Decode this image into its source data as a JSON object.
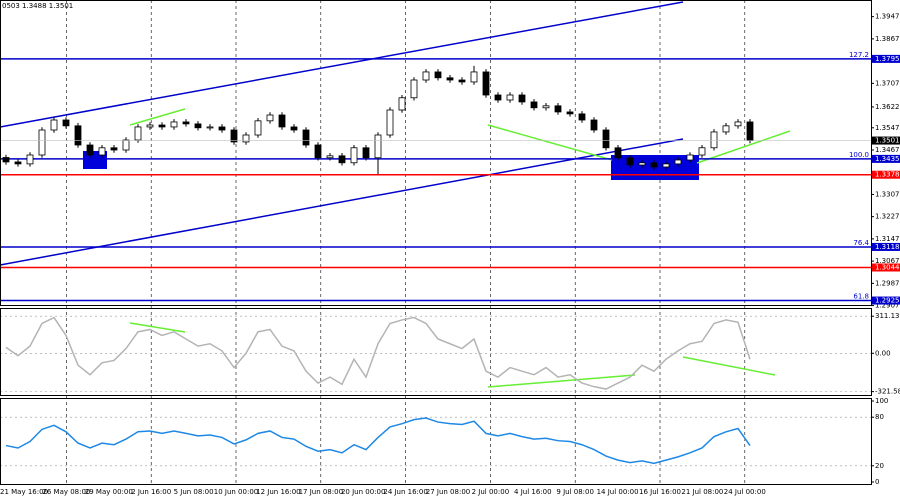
{
  "chart_data": [
    {
      "type": "candlestick",
      "title": "0503 1.3488 1.3501",
      "color": "#000000",
      "x_labels": [
        "21 May 16:00",
        "26 May 08:00",
        "29 May 00:00",
        "2 Jun 16:00",
        "5 Jun 08:00",
        "10 Jun 00:00",
        "12 Jun 16:00",
        "17 Jun 08:00",
        "20 Jun 00:00",
        "24 Jun 16:00",
        "27 Jun 08:00",
        "2 Jul 00:00",
        "4 Jul 16:00",
        "9 Jul 08:00",
        "14 Jul 00:00",
        "16 Jul 16:00",
        "21 Jul 08:00",
        "24 Jul 00:00"
      ],
      "open": [
        1.344,
        1.3424,
        1.3417,
        1.3449,
        1.3539,
        1.3575,
        1.3554,
        1.3485,
        1.3449,
        1.3475,
        1.3467,
        1.3503,
        1.355,
        1.3557,
        1.355,
        1.3568,
        1.3561,
        1.3547,
        1.355,
        1.3539,
        1.3496,
        1.3521,
        1.3572,
        1.3593,
        1.355,
        1.3539,
        1.3485,
        1.3439,
        1.3446,
        1.3421,
        1.3475,
        1.3439,
        1.3521,
        1.3611,
        1.3655,
        1.3719,
        1.3748,
        1.3727,
        1.3719,
        1.3712,
        1.3748,
        1.3665,
        1.3647,
        1.3665,
        1.364,
        1.3619,
        1.3626,
        1.3604,
        1.3597,
        1.3575,
        1.3539,
        1.3475,
        1.3439,
        1.3413,
        1.3421,
        1.3406,
        1.3417,
        1.3431,
        1.3449,
        1.3475,
        1.3532,
        1.3554,
        1.3568
      ],
      "high": [
        1.345,
        1.3434,
        1.3459,
        1.3549,
        1.3585,
        1.3585,
        1.3564,
        1.3495,
        1.3485,
        1.3485,
        1.3513,
        1.356,
        1.3567,
        1.3567,
        1.3578,
        1.3578,
        1.3571,
        1.356,
        1.356,
        1.3549,
        1.3531,
        1.3582,
        1.3603,
        1.3603,
        1.356,
        1.3549,
        1.3495,
        1.3456,
        1.3456,
        1.3485,
        1.3485,
        1.3531,
        1.3621,
        1.3665,
        1.3729,
        1.3758,
        1.3758,
        1.3737,
        1.3729,
        1.377,
        1.3758,
        1.3675,
        1.3675,
        1.3675,
        1.365,
        1.3636,
        1.3636,
        1.3614,
        1.3607,
        1.3585,
        1.3549,
        1.3485,
        1.3449,
        1.3431,
        1.3431,
        1.3427,
        1.3441,
        1.3459,
        1.3485,
        1.3542,
        1.3564,
        1.3578,
        1.3578
      ],
      "low": [
        1.3414,
        1.3407,
        1.3407,
        1.3439,
        1.3529,
        1.3544,
        1.3475,
        1.3439,
        1.3439,
        1.3457,
        1.3457,
        1.3493,
        1.354,
        1.354,
        1.354,
        1.3551,
        1.3537,
        1.3537,
        1.3529,
        1.3486,
        1.3486,
        1.3511,
        1.3562,
        1.354,
        1.3529,
        1.3475,
        1.3429,
        1.3429,
        1.3411,
        1.3411,
        1.3429,
        1.338,
        1.3511,
        1.3601,
        1.3645,
        1.3709,
        1.3717,
        1.3709,
        1.3702,
        1.3702,
        1.3655,
        1.3637,
        1.3637,
        1.363,
        1.3609,
        1.3609,
        1.3594,
        1.3587,
        1.3565,
        1.3529,
        1.3465,
        1.3429,
        1.3403,
        1.3403,
        1.3396,
        1.3396,
        1.3407,
        1.3421,
        1.3439,
        1.3465,
        1.3522,
        1.3544,
        1.3491
      ],
      "close": [
        1.3424,
        1.3417,
        1.3449,
        1.3539,
        1.3575,
        1.3554,
        1.3485,
        1.3449,
        1.3475,
        1.3467,
        1.3503,
        1.355,
        1.3557,
        1.355,
        1.3568,
        1.3561,
        1.3547,
        1.355,
        1.3539,
        1.3496,
        1.3521,
        1.3572,
        1.3593,
        1.355,
        1.3539,
        1.3485,
        1.3439,
        1.3446,
        1.3421,
        1.3475,
        1.3439,
        1.3521,
        1.3611,
        1.3655,
        1.3719,
        1.3748,
        1.3727,
        1.3719,
        1.3712,
        1.3748,
        1.3665,
        1.3647,
        1.3665,
        1.364,
        1.3619,
        1.3626,
        1.3604,
        1.3597,
        1.3575,
        1.3539,
        1.3475,
        1.3439,
        1.3413,
        1.3421,
        1.3406,
        1.3417,
        1.3431,
        1.3449,
        1.3475,
        1.3532,
        1.3554,
        1.3568,
        1.3501
      ],
      "ylim": [
        1.2909,
        1.4007
      ],
      "yticks": [
        1.3947,
        1.3867,
        1.3707,
        1.3622,
        1.3547,
        1.3467,
        1.3307,
        1.3227,
        1.3147,
        1.3067,
        1.2987,
        1.2907
      ],
      "levels": [
        {
          "value": 1.3795,
          "color": "#0000cc",
          "label": "127.2"
        },
        {
          "value": 1.3435,
          "color": "#0000cc",
          "label": "100.0"
        },
        {
          "value": 1.3378,
          "color": "#ff0000"
        },
        {
          "value": 1.3118,
          "color": "#0000cc",
          "label": "76.4"
        },
        {
          "value": 1.3044,
          "color": "#ff0000"
        },
        {
          "value": 1.2925,
          "color": "#0000cc",
          "label": "61.8"
        }
      ]
    },
    {
      "type": "line",
      "color": "#b4b4b4",
      "values": [
        50,
        -20,
        60,
        250,
        300,
        150,
        -100,
        -180,
        -80,
        -60,
        40,
        180,
        200,
        150,
        180,
        120,
        60,
        80,
        20,
        -120,
        0,
        180,
        200,
        60,
        20,
        -150,
        -250,
        -200,
        -260,
        -50,
        -200,
        80,
        250,
        280,
        300,
        250,
        120,
        80,
        40,
        120,
        -150,
        -200,
        -120,
        -150,
        -180,
        -120,
        -200,
        -180,
        -250,
        -280,
        -300,
        -250,
        -200,
        -100,
        -150,
        -50,
        20,
        80,
        100,
        250,
        280,
        260,
        -50
      ],
      "ylim": [
        -350,
        380
      ],
      "yticks": [
        311.136,
        {
          "value": 0,
          "label": "0.00"
        },
        -321.584
      ]
    },
    {
      "type": "line",
      "color": "#1e88e5",
      "values": [
        45,
        42,
        50,
        65,
        70,
        62,
        48,
        42,
        48,
        46,
        53,
        62,
        63,
        60,
        63,
        60,
        57,
        58,
        55,
        47,
        52,
        60,
        63,
        55,
        53,
        44,
        38,
        40,
        36,
        46,
        40,
        55,
        68,
        72,
        77,
        79,
        74,
        72,
        71,
        75,
        60,
        57,
        60,
        56,
        53,
        54,
        51,
        50,
        46,
        40,
        32,
        27,
        24,
        26,
        23,
        27,
        31,
        36,
        42,
        56,
        62,
        66,
        45
      ],
      "ylim": [
        0,
        100
      ],
      "yticks": [
        100,
        80,
        20,
        0
      ]
    }
  ]
}
